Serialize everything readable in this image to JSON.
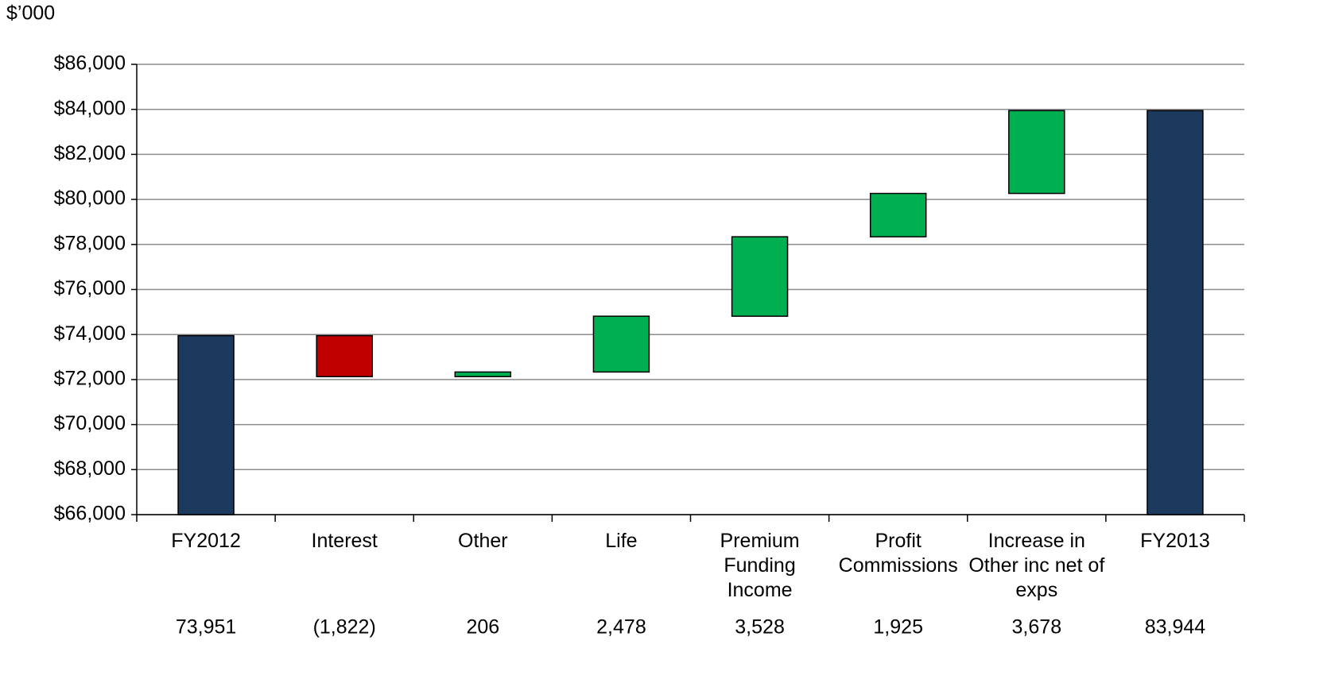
{
  "chart_data": {
    "type": "waterfall",
    "unit_label": "$’000",
    "categories": [
      "FY2012",
      "Interest",
      "Other",
      "Life",
      "Premium Funding Income",
      "Profit Commissions",
      "Increase in Other inc net of exps",
      "FY2013"
    ],
    "values": [
      73951,
      -1822,
      206,
      2478,
      3528,
      1925,
      3678,
      83944
    ],
    "value_labels": [
      "73,951",
      "(1,822)",
      "206",
      "2,478",
      "3,528",
      "1,925",
      "3,678",
      "83,944"
    ],
    "measures": [
      "total",
      "relative",
      "relative",
      "relative",
      "relative",
      "relative",
      "relative",
      "total"
    ],
    "colors": {
      "total": "#1b3a5e",
      "increase": "#00b050",
      "decrease": "#c00000"
    },
    "ylim": [
      66000,
      86000
    ],
    "yticks": [
      {
        "value": 66000,
        "label": "$66,000"
      },
      {
        "value": 68000,
        "label": "$68,000"
      },
      {
        "value": 70000,
        "label": "$70,000"
      },
      {
        "value": 72000,
        "label": "$72,000"
      },
      {
        "value": 74000,
        "label": "$74,000"
      },
      {
        "value": 76000,
        "label": "$76,000"
      },
      {
        "value": 78000,
        "label": "$78,000"
      },
      {
        "value": 80000,
        "label": "$80,000"
      },
      {
        "value": 82000,
        "label": "$82,000"
      },
      {
        "value": 84000,
        "label": "$84,000"
      },
      {
        "value": 86000,
        "label": "$86,000"
      }
    ],
    "grid": true
  }
}
